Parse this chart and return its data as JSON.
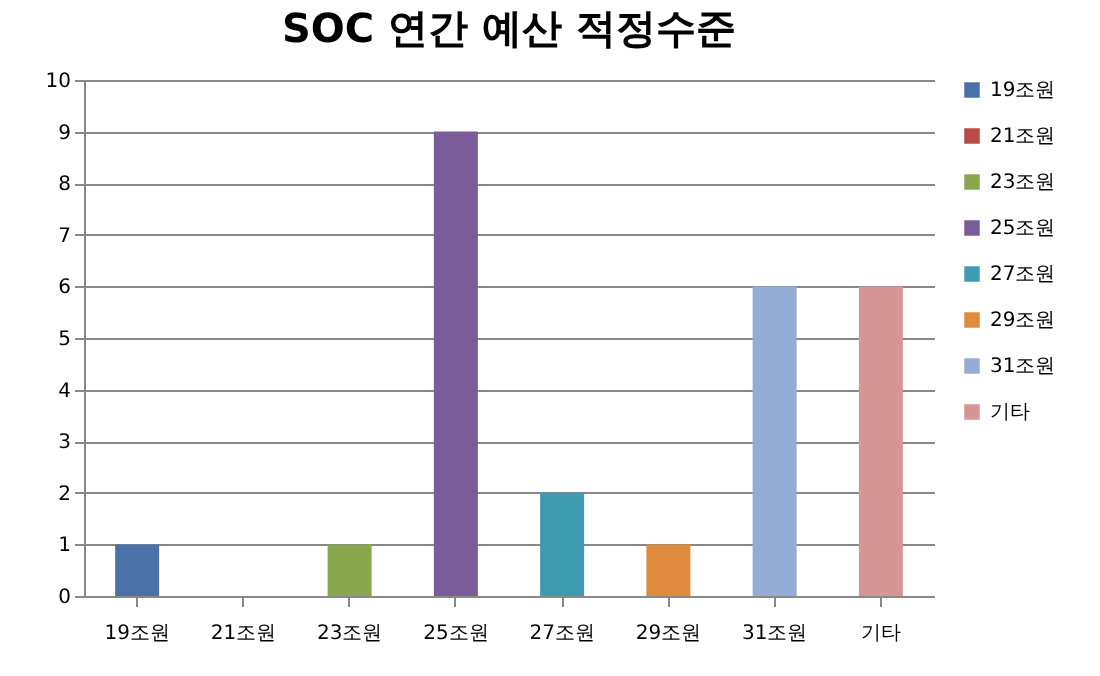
{
  "chart_data": {
    "type": "bar",
    "title": "SOC 연간 예산 적정수준",
    "categories": [
      "19조원",
      "21조원",
      "23조원",
      "25조원",
      "27조원",
      "29조원",
      "31조원",
      "기타"
    ],
    "series": [
      {
        "name": "19조원",
        "color": "#4a72a8",
        "values": [
          1,
          null,
          null,
          null,
          null,
          null,
          null,
          null
        ]
      },
      {
        "name": "21조원",
        "color": "#b94a48",
        "values": [
          null,
          0,
          null,
          null,
          null,
          null,
          null,
          null
        ]
      },
      {
        "name": "23조원",
        "color": "#8aa74e",
        "values": [
          null,
          null,
          1,
          null,
          null,
          null,
          null,
          null
        ]
      },
      {
        "name": "25조원",
        "color": "#7a5c9b",
        "values": [
          null,
          null,
          null,
          9,
          null,
          null,
          null,
          null
        ]
      },
      {
        "name": "27조원",
        "color": "#3f9bb1",
        "values": [
          null,
          null,
          null,
          null,
          2,
          null,
          null,
          null
        ]
      },
      {
        "name": "29조원",
        "color": "#e08b3d",
        "values": [
          null,
          null,
          null,
          null,
          null,
          1,
          null,
          null
        ]
      },
      {
        "name": "31조원",
        "color": "#94add6",
        "values": [
          null,
          null,
          null,
          null,
          null,
          null,
          6,
          null
        ]
      },
      {
        "name": "기타",
        "color": "#d69696",
        "values": [
          null,
          null,
          null,
          null,
          null,
          null,
          null,
          6
        ]
      }
    ],
    "ylim": [
      0,
      10
    ],
    "yticks": [
      0,
      1,
      2,
      3,
      4,
      5,
      6,
      7,
      8,
      9,
      10
    ],
    "grid": "y",
    "legend": "right"
  }
}
